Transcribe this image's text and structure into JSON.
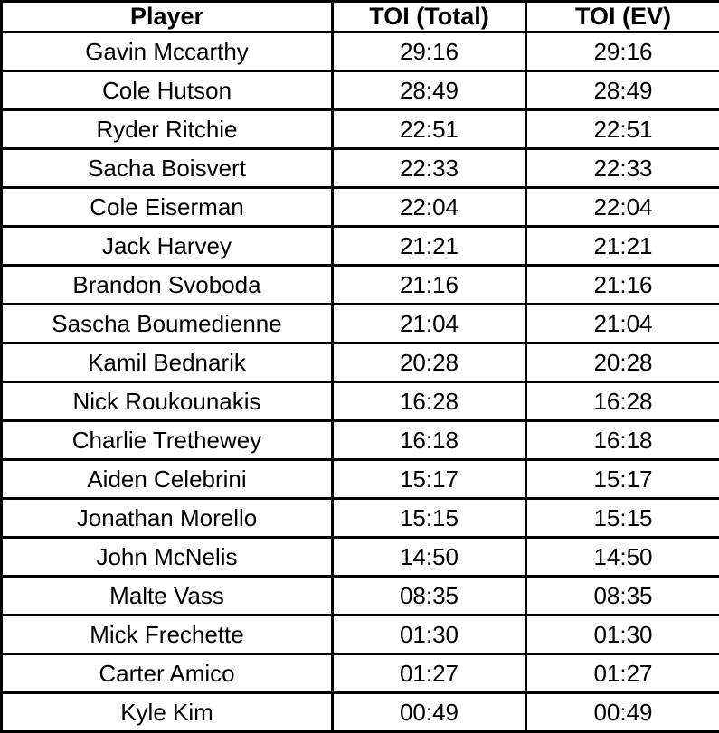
{
  "chart_data": {
    "type": "table",
    "columns": [
      "Player",
      "TOI (Total)",
      "TOI (EV)"
    ],
    "rows": [
      [
        "Gavin Mccarthy",
        "29:16",
        "29:16"
      ],
      [
        "Cole Hutson",
        "28:49",
        "28:49"
      ],
      [
        "Ryder Ritchie",
        "22:51",
        "22:51"
      ],
      [
        "Sacha Boisvert",
        "22:33",
        "22:33"
      ],
      [
        "Cole Eiserman",
        "22:04",
        "22:04"
      ],
      [
        "Jack Harvey",
        "21:21",
        "21:21"
      ],
      [
        "Brandon Svoboda",
        "21:16",
        "21:16"
      ],
      [
        "Sascha Boumedienne",
        "21:04",
        "21:04"
      ],
      [
        "Kamil Bednarik",
        "20:28",
        "20:28"
      ],
      [
        "Nick Roukounakis",
        "16:28",
        "16:28"
      ],
      [
        "Charlie Trethewey",
        "16:18",
        "16:18"
      ],
      [
        "Aiden Celebrini",
        "15:17",
        "15:17"
      ],
      [
        "Jonathan Morello",
        "15:15",
        "15:15"
      ],
      [
        "John McNelis",
        "14:50",
        "14:50"
      ],
      [
        "Malte Vass",
        "08:35",
        "08:35"
      ],
      [
        "Mick Frechette",
        "01:30",
        "01:30"
      ],
      [
        "Carter Amico",
        "01:27",
        "01:27"
      ],
      [
        "Kyle Kim",
        "00:49",
        "00:49"
      ]
    ]
  },
  "colors": {
    "border": "#000000",
    "text": "#000000",
    "background": "#ffffff"
  }
}
